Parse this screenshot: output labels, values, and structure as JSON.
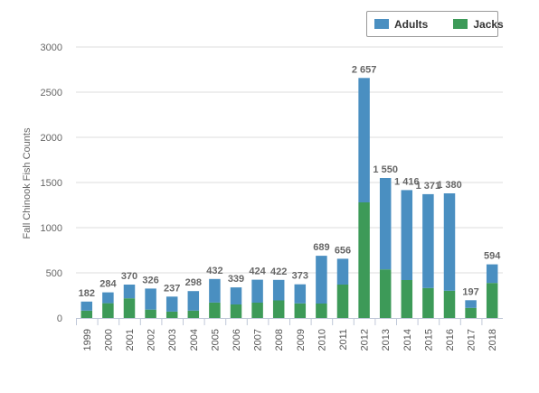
{
  "chart_data": {
    "type": "bar",
    "stacked": true,
    "title": "",
    "xlabel": "",
    "ylabel": "Fall Chinook Fish Counts",
    "ylim": [
      0,
      3000
    ],
    "yticks": [
      "0",
      "500",
      "1000",
      "1500",
      "2000",
      "2500",
      "3000"
    ],
    "grid": true,
    "legend_position": "top-right",
    "categories": [
      "1999",
      "2000",
      "2001",
      "2002",
      "2003",
      "2004",
      "2005",
      "2006",
      "2007",
      "2008",
      "2009",
      "2010",
      "2011",
      "2012",
      "2013",
      "2014",
      "2015",
      "2016",
      "2017",
      "2018"
    ],
    "series": [
      {
        "name": "Jacks",
        "color": "#3d9a58",
        "values": [
          82,
          164,
          218,
          93,
          71,
          82,
          171,
          150,
          170,
          195,
          162,
          160,
          370,
          1280,
          538,
          420,
          332,
          302,
          112,
          388
        ]
      },
      {
        "name": "Adults",
        "color": "#4a8fc1",
        "values": [
          100,
          120,
          152,
          233,
          166,
          216,
          261,
          189,
          254,
          227,
          211,
          529,
          286,
          1377,
          1012,
          996,
          1039,
          1078,
          85,
          206
        ]
      }
    ],
    "totals": [
      182,
      284,
      370,
      326,
      237,
      298,
      432,
      339,
      424,
      422,
      373,
      689,
      656,
      2657,
      1550,
      1416,
      1371,
      1380,
      197,
      594
    ],
    "total_labels": [
      "182",
      "284",
      "370",
      "326",
      "237",
      "298",
      "432",
      "339",
      "424",
      "422",
      "373",
      "689",
      "656",
      "2 657",
      "1 550",
      "1 416",
      "1 371",
      "1 380",
      "197",
      "594"
    ]
  },
  "legend": {
    "adults_label": "Adults",
    "adults_color": "#4a8fc1",
    "jacks_label": "Jacks",
    "jacks_color": "#3d9a58"
  }
}
